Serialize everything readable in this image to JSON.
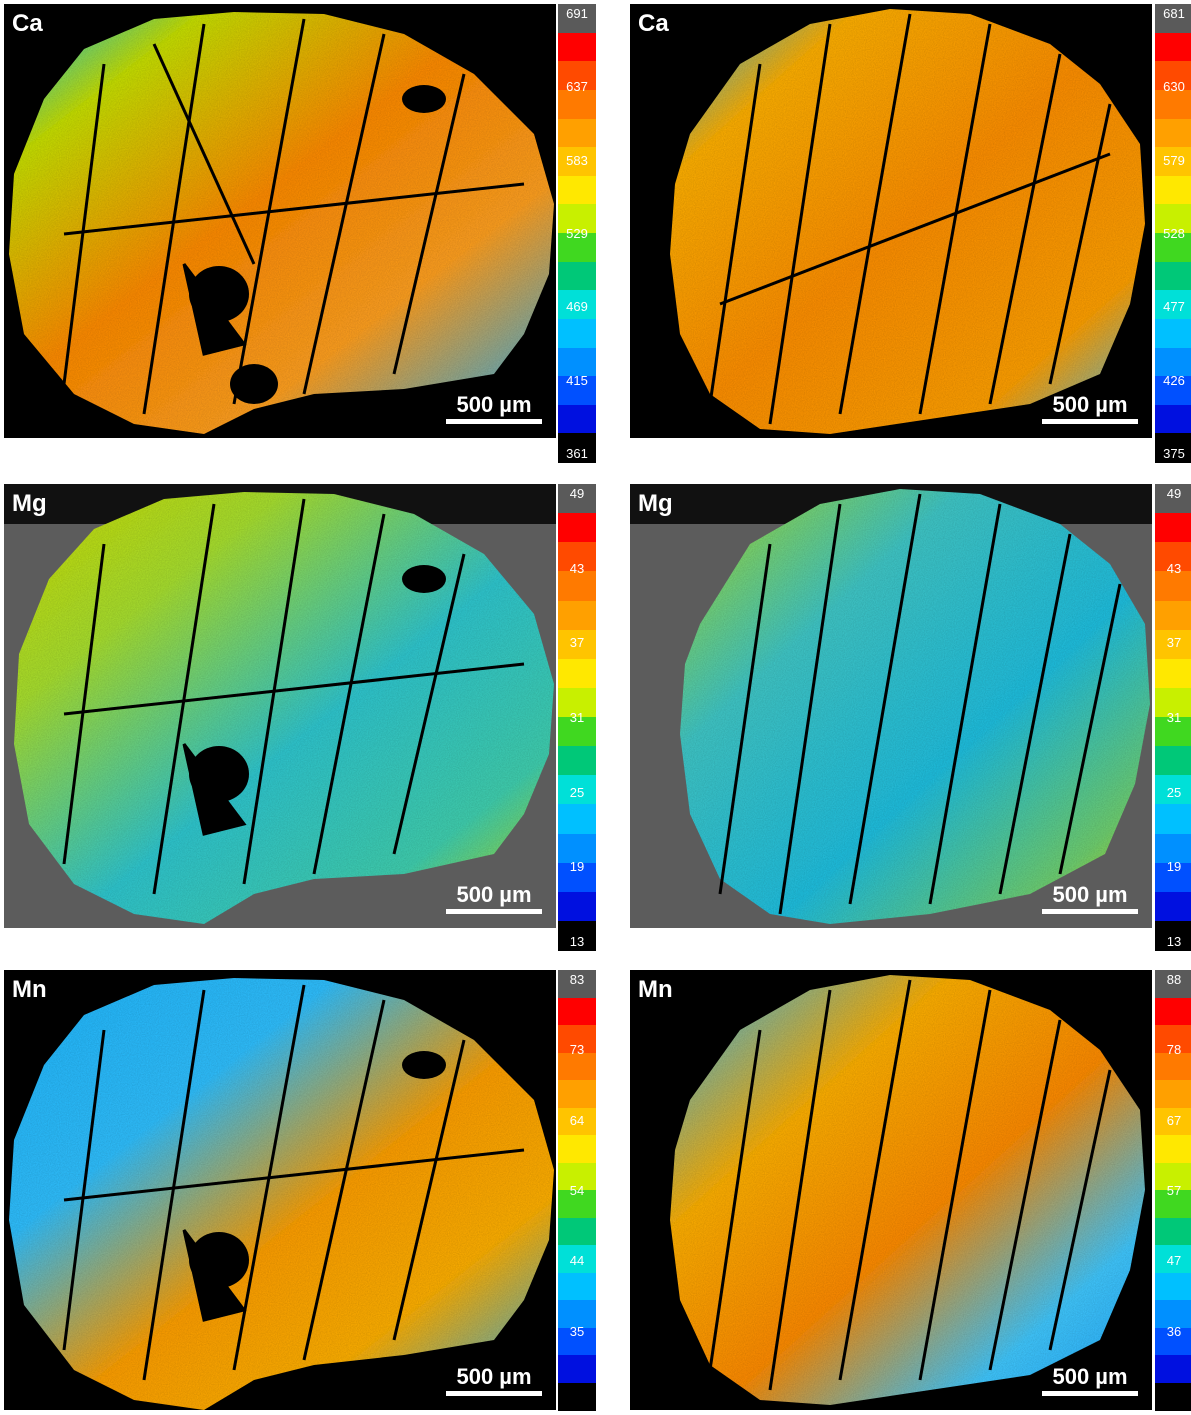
{
  "panels": [
    {
      "element": "Ca",
      "scale_label": "500 µm",
      "colorbar_ticks": [
        "691",
        "637",
        "583",
        "529",
        "469",
        "415",
        "361"
      ]
    },
    {
      "element": "Ca",
      "scale_label": "500 µm",
      "colorbar_ticks": [
        "681",
        "630",
        "579",
        "528",
        "477",
        "426",
        "375"
      ]
    },
    {
      "element": "Mg",
      "scale_label": "500 µm",
      "colorbar_ticks": [
        "49",
        "43",
        "37",
        "31",
        "25",
        "19",
        "13"
      ]
    },
    {
      "element": "Mg",
      "scale_label": "500 µm",
      "colorbar_ticks": [
        "49",
        "43",
        "37",
        "31",
        "25",
        "19",
        "13"
      ]
    },
    {
      "element": "Mn",
      "scale_label": "500 µm",
      "colorbar_ticks": [
        "83",
        "73",
        "64",
        "54",
        "44",
        "35",
        ""
      ]
    },
    {
      "element": "Mn",
      "scale_label": "500 µm",
      "colorbar_ticks": [
        "88",
        "78",
        "67",
        "57",
        "47",
        "36",
        ""
      ]
    }
  ],
  "colorbar_colors": [
    "#5a5a5a",
    "#ff0000",
    "#ff4a00",
    "#ff7a00",
    "#ffa000",
    "#ffc400",
    "#ffe800",
    "#c8f000",
    "#40d820",
    "#00c878",
    "#00e0d8",
    "#00c0ff",
    "#0090ff",
    "#0050ff",
    "#0010e0",
    "#000000"
  ]
}
